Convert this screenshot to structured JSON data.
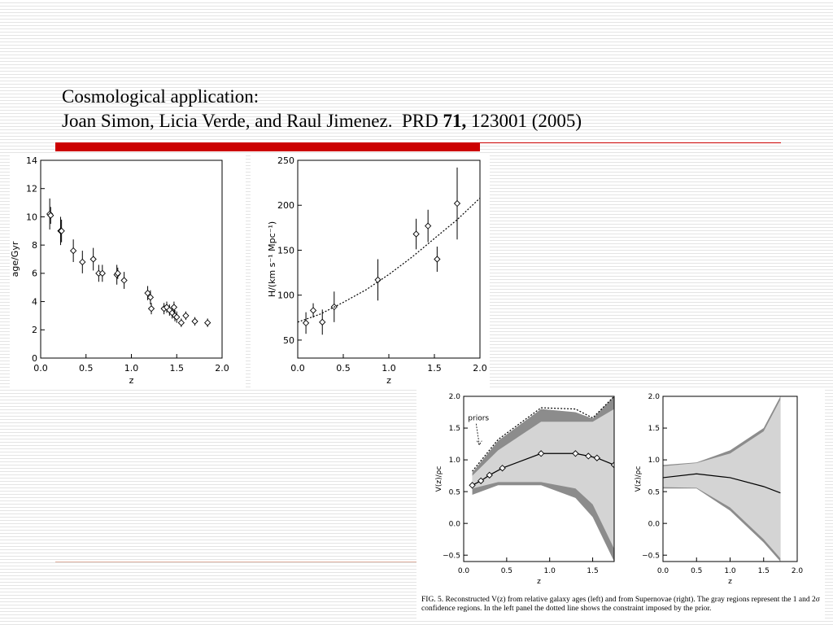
{
  "slide": {
    "title_line1": "Cosmological application:",
    "title_line2_a": "Joan Simon, Licia Verde, and Raul Jimenez.  PRD ",
    "title_line2_b": "71,",
    "title_line2_c": " 123001 (2005)"
  },
  "chart_data": [
    {
      "type": "scatter",
      "xlabel": "z",
      "ylabel": "age/Gyr",
      "xlim": [
        0,
        2
      ],
      "xticks": [
        {
          "value": 0,
          "label": "0.0"
        },
        {
          "value": 0.5,
          "label": "0.5"
        },
        {
          "value": 1,
          "label": "1.0"
        },
        {
          "value": 1.5,
          "label": "1.5"
        },
        {
          "value": 2,
          "label": "2.0"
        }
      ],
      "ylim": [
        0,
        14
      ],
      "yticks": [
        0,
        2,
        4,
        6,
        8,
        10,
        12,
        14
      ],
      "series": [
        {
          "style": "diamond-errorbar",
          "color": "#000000",
          "x": [
            0.1,
            0.11,
            0.22,
            0.23,
            0.36,
            0.46,
            0.58,
            0.64,
            0.68,
            0.84,
            0.85,
            0.92,
            1.18,
            1.21,
            1.22,
            1.36,
            1.39,
            1.42,
            1.45,
            1.47,
            1.48,
            1.5,
            1.55,
            1.6,
            1.7,
            1.84
          ],
          "values": [
            10.2,
            10.1,
            9.0,
            9.0,
            7.6,
            6.8,
            7.0,
            6.0,
            6.0,
            5.9,
            6.0,
            5.5,
            4.6,
            4.3,
            3.5,
            3.5,
            3.6,
            3.4,
            3.2,
            3.6,
            3.0,
            2.9,
            2.5,
            3.0,
            2.6,
            2.5
          ],
          "errors": [
            1.1,
            0.6,
            1.0,
            0.8,
            0.8,
            0.8,
            0.8,
            0.6,
            0.6,
            0.7,
            0.4,
            0.6,
            0.5,
            0.5,
            0.4,
            0.4,
            0.4,
            0.4,
            0.4,
            0.4,
            0.4,
            0.4,
            0.3,
            0.3,
            0.3,
            0.3
          ]
        }
      ]
    },
    {
      "type": "scatter",
      "xlabel": "z",
      "ylabel": "H/(km s⁻¹ Mpc⁻¹)",
      "xlim": [
        0,
        2
      ],
      "xticks": [
        {
          "value": 0,
          "label": "0.0"
        },
        {
          "value": 0.5,
          "label": "0.5"
        },
        {
          "value": 1,
          "label": "1.0"
        },
        {
          "value": 1.5,
          "label": "1.5"
        },
        {
          "value": 2,
          "label": "2.0"
        }
      ],
      "ylim": [
        30,
        250
      ],
      "yticks": [
        50,
        100,
        150,
        200,
        250
      ],
      "series": [
        {
          "style": "diamond-errorbar",
          "color": "#000000",
          "x": [
            0.09,
            0.17,
            0.27,
            0.4,
            0.88,
            1.3,
            1.43,
            1.53,
            1.75
          ],
          "values": [
            69,
            83,
            70,
            87,
            117,
            168,
            177,
            140,
            202
          ],
          "errors": [
            12,
            8,
            14,
            17,
            23,
            17,
            18,
            14,
            40
          ]
        },
        {
          "style": "dotted",
          "color": "#000000",
          "x": [
            0,
            0.25,
            0.5,
            0.75,
            1,
            1.25,
            1.5,
            1.75,
            2
          ],
          "values": [
            70,
            79,
            92,
            106,
            123,
            142,
            163,
            184,
            208
          ]
        }
      ]
    },
    {
      "type": "band",
      "xlabel": "z",
      "ylabel": "V(z)/ρc",
      "annotation": "priors",
      "xlim": [
        0,
        1.75
      ],
      "xticks": [
        {
          "value": 0,
          "label": "0.0"
        },
        {
          "value": 0.5,
          "label": "0.5"
        },
        {
          "value": 1,
          "label": "1.0"
        },
        {
          "value": 1.5,
          "label": "1.5"
        }
      ],
      "ylim": [
        -0.6,
        2.0
      ],
      "yticks": [
        {
          "value": -0.5,
          "label": "−0.5"
        },
        {
          "value": 0,
          "label": "0.0"
        },
        {
          "value": 0.5,
          "label": "0.5"
        },
        {
          "value": 1,
          "label": "1.0"
        },
        {
          "value": 1.5,
          "label": "1.5"
        },
        {
          "value": 2,
          "label": "2.0"
        }
      ],
      "series": [
        {
          "style": "band",
          "color": "#8c8c8c",
          "x": [
            0.1,
            0.4,
            0.9,
            1.3,
            1.5,
            1.75
          ],
          "upper": [
            0.8,
            1.3,
            1.8,
            1.75,
            1.65,
            2.0
          ],
          "lower": [
            0.45,
            0.6,
            0.6,
            0.4,
            0.1,
            -0.6
          ]
        },
        {
          "style": "band",
          "color": "#d4d4d4",
          "x": [
            0.1,
            0.4,
            0.9,
            1.3,
            1.5,
            1.75
          ],
          "upper": [
            0.75,
            1.15,
            1.6,
            1.6,
            1.6,
            1.8
          ],
          "lower": [
            0.55,
            0.65,
            0.65,
            0.55,
            0.3,
            -0.4
          ]
        },
        {
          "style": "dotted",
          "color": "#000000",
          "x": [
            0.1,
            0.4,
            0.9,
            1.3,
            1.5,
            1.75
          ],
          "values": [
            0.82,
            1.32,
            1.82,
            1.8,
            1.66,
            2.0
          ]
        },
        {
          "style": "diamond-line",
          "color": "#000000",
          "x": [
            0.1,
            0.2,
            0.3,
            0.45,
            0.9,
            1.3,
            1.45,
            1.55,
            1.75
          ],
          "values": [
            0.6,
            0.67,
            0.76,
            0.87,
            1.1,
            1.1,
            1.06,
            1.03,
            0.92
          ]
        }
      ]
    },
    {
      "type": "band",
      "xlabel": "z",
      "ylabel": "V(z)/ρc",
      "xlim": [
        0,
        2
      ],
      "xticks": [
        {
          "value": 0,
          "label": "0.0"
        },
        {
          "value": 0.5,
          "label": "0.5"
        },
        {
          "value": 1,
          "label": "1.0"
        },
        {
          "value": 1.5,
          "label": "1.5"
        },
        {
          "value": 2,
          "label": "2.0"
        }
      ],
      "ylim": [
        -0.6,
        2.0
      ],
      "yticks": [
        {
          "value": -0.5,
          "label": "−0.5"
        },
        {
          "value": 0,
          "label": "0.0"
        },
        {
          "value": 0.5,
          "label": "0.5"
        },
        {
          "value": 1,
          "label": "1.0"
        },
        {
          "value": 1.5,
          "label": "1.5"
        },
        {
          "value": 2,
          "label": "2.0"
        }
      ],
      "series": [
        {
          "style": "band",
          "color": "#8c8c8c",
          "x": [
            0,
            0.5,
            1.0,
            1.5,
            1.75
          ],
          "upper": [
            0.92,
            0.96,
            1.15,
            1.5,
            2.0
          ],
          "lower": [
            0.55,
            0.55,
            0.2,
            -0.3,
            -0.6
          ]
        },
        {
          "style": "band",
          "color": "#d4d4d4",
          "x": [
            0,
            0.5,
            1.0,
            1.5,
            1.75
          ],
          "upper": [
            0.9,
            0.95,
            1.1,
            1.45,
            1.95
          ],
          "lower": [
            0.57,
            0.56,
            0.25,
            -0.25,
            -0.55
          ]
        },
        {
          "style": "line",
          "color": "#000000",
          "x": [
            0,
            0.5,
            1.0,
            1.5,
            1.75
          ],
          "values": [
            0.72,
            0.78,
            0.72,
            0.58,
            0.48
          ]
        }
      ]
    }
  ],
  "caption": [
    "FIG. 5.   Reconstructed V(z) from relative galaxy ages (left) and from Supernovae (right). The gray regions represent the 1 and 2σ",
    "confidence regions. In the left panel the dotted line shows the constraint imposed by the prior."
  ]
}
